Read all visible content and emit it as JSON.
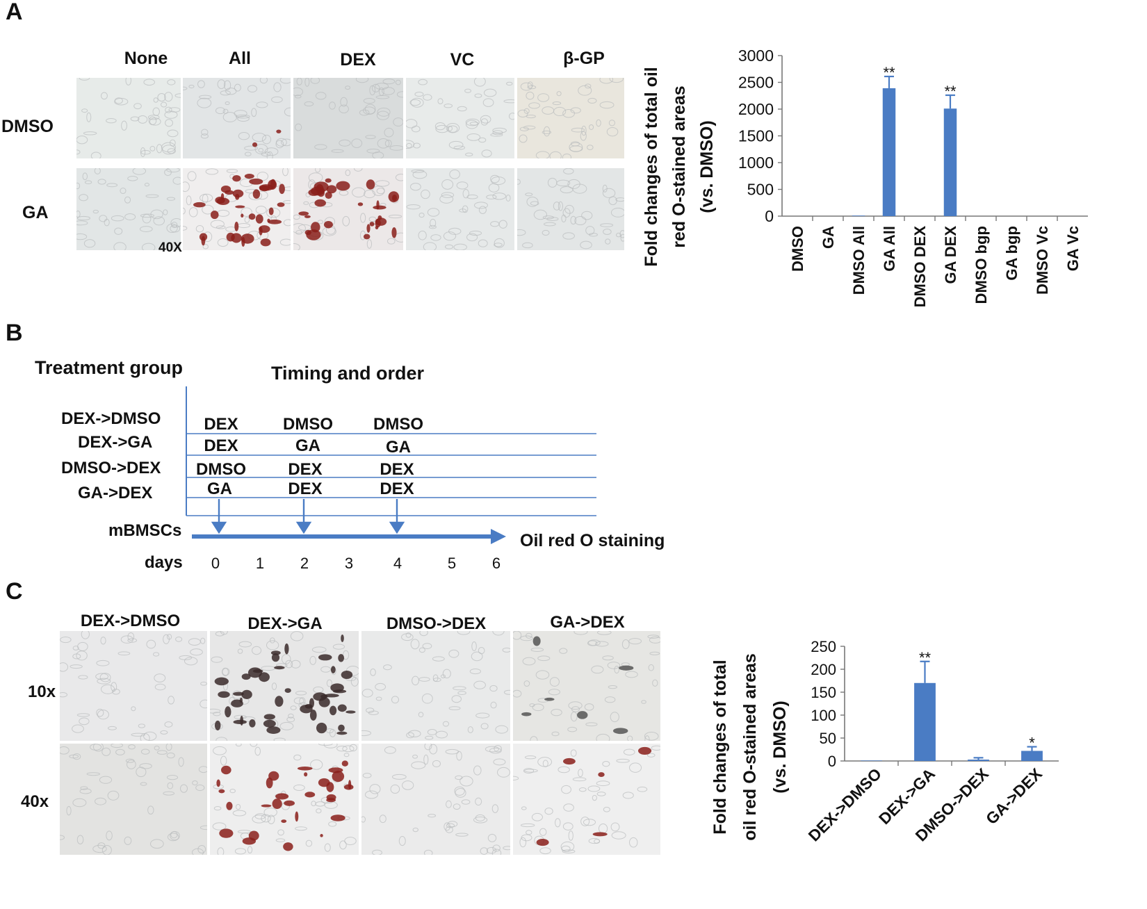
{
  "panels": [
    "A",
    "B",
    "C"
  ],
  "panel_a": {
    "column_labels": [
      "None",
      "All",
      "DEX",
      "VC",
      "β-GP"
    ],
    "row_labels": [
      "DMSO",
      "GA"
    ],
    "magnification": "40X"
  },
  "panel_b": {
    "header_group": "Treatment group",
    "header_timing": "Timing and order",
    "rows": [
      {
        "group": "DEX->DMSO",
        "steps": [
          "DEX",
          "DMSO",
          "DMSO"
        ]
      },
      {
        "group": "DEX->GA",
        "steps": [
          "DEX",
          "GA",
          "GA"
        ]
      },
      {
        "group": "DMSO->DEX",
        "steps": [
          "DMSO",
          "DEX",
          "DEX"
        ]
      },
      {
        "group": "GA->DEX",
        "steps": [
          "GA",
          "DEX",
          "DEX"
        ]
      }
    ],
    "cells_label": "mBMSCs",
    "days_label": "days",
    "days": [
      "0",
      "1",
      "2",
      "3",
      "4",
      "5",
      "6"
    ],
    "endpoint": "Oil red O staining"
  },
  "panel_c": {
    "column_labels": [
      "DEX->DMSO",
      "DEX->GA",
      "DMSO->DEX",
      "GA->DEX"
    ],
    "row_labels": [
      "10x",
      "40x"
    ]
  },
  "chart_data": [
    {
      "type": "bar",
      "title": "",
      "xlabel": "",
      "ylabel": "Fold changes of total oil red O-stained areas (vs. DMSO)",
      "ylabel_lines": [
        "Fold changes of total oil",
        "red O-stained areas",
        "(vs. DMSO)"
      ],
      "categories": [
        "DMSO",
        "GA",
        "DMSO All",
        "GA All",
        "DMSO DEX",
        "GA DEX",
        "DMSO bgp",
        "GA bgp",
        "DMSO Vc",
        "GA Vc"
      ],
      "values": [
        0,
        0,
        10,
        2390,
        0,
        2010,
        0,
        0,
        0,
        0
      ],
      "errors": [
        0,
        0,
        0,
        220,
        0,
        250,
        0,
        0,
        0,
        0
      ],
      "significance": [
        "",
        "",
        "",
        "**",
        "",
        "**",
        "",
        "",
        "",
        ""
      ],
      "ylim": [
        0,
        3000
      ],
      "yticks": [
        "0",
        "500",
        "1000",
        "1500",
        "2000",
        "2500",
        "3000"
      ],
      "color": "#4a7cc4"
    },
    {
      "type": "bar",
      "title": "",
      "xlabel": "",
      "ylabel": "Fold changes of total oil red O-stained areas (vs. DMSO)",
      "ylabel_lines": [
        "Fold changes of total",
        "oil red O-stained areas",
        "(vs. DMSO)"
      ],
      "categories": [
        "DEX->DMSO",
        "DEX->GA",
        "DMSO->DEX",
        "GA->DEX"
      ],
      "values": [
        1,
        170,
        3,
        22
      ],
      "errors": [
        0,
        47,
        4,
        9
      ],
      "significance": [
        "",
        "**",
        "",
        "*"
      ],
      "ylim": [
        0,
        250
      ],
      "yticks": [
        "0",
        "50",
        "100",
        "150",
        "200",
        "250"
      ],
      "color": "#4a7cc4"
    }
  ]
}
